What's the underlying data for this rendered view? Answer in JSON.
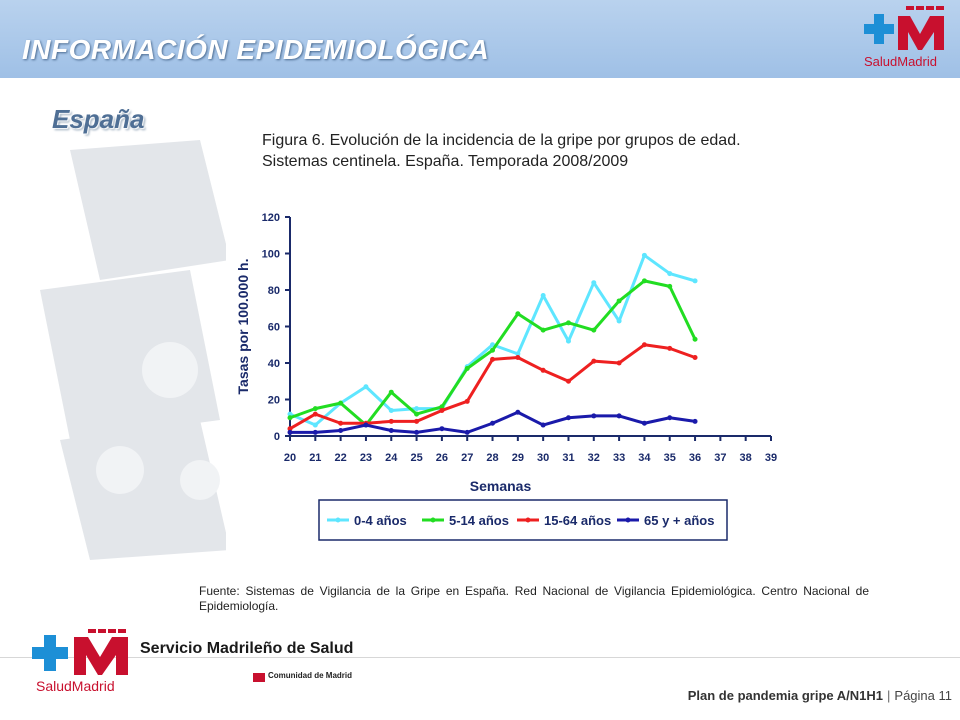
{
  "header": {
    "title": "INFORMACIÓN EPIDEMIOLÓGICA",
    "logo_text": "SaludMadrid"
  },
  "section": {
    "title": "España"
  },
  "figure": {
    "title_line1": "Figura 6. Evolución de la incidencia de la gripe por grupos de edad.",
    "title_line2": "Sistemas centinela. España. Temporada 2008/2009"
  },
  "source": "Fuente: Sistemas de Vigilancia de la Gripe en España. Red Nacional de Vigilancia Epidemiológica. Centro Nacional de Epidemiología.",
  "footer": {
    "org": "Servicio Madrileño de Salud",
    "logo_text": "SaludMadrid",
    "comunidad": "Comunidad de Madrid",
    "plan": "Plan de pandemia gripe A/N1H1",
    "page_label": "Página 11"
  },
  "chart_data": {
    "type": "line",
    "xlabel": "Semanas",
    "ylabel": "Tasas por 100.000 h.",
    "x": [
      20,
      21,
      22,
      23,
      24,
      25,
      26,
      27,
      28,
      29,
      30,
      31,
      32,
      33,
      34,
      35,
      36,
      37,
      38,
      39
    ],
    "ylim": [
      0,
      120
    ],
    "yticks": [
      0,
      20,
      40,
      60,
      80,
      100,
      120
    ],
    "legend_position": "bottom",
    "series": [
      {
        "name": "0-4 años",
        "color": "#5ee6ff",
        "values": [
          12,
          6,
          18,
          27,
          14,
          15,
          15,
          38,
          50,
          45,
          77,
          52,
          84,
          63,
          99,
          89,
          85,
          null,
          null,
          null
        ]
      },
      {
        "name": "5-14 años",
        "color": "#22dd22",
        "values": [
          10,
          15,
          18,
          6,
          24,
          12,
          16,
          37,
          47,
          67,
          58,
          62,
          58,
          74,
          85,
          82,
          53,
          null,
          null,
          null
        ]
      },
      {
        "name": "15-64 años",
        "color": "#ee2020",
        "values": [
          4,
          12,
          7,
          7,
          8,
          8,
          14,
          19,
          42,
          43,
          36,
          30,
          41,
          40,
          50,
          48,
          43,
          null,
          null,
          null
        ]
      },
      {
        "name": "65 y + años",
        "color": "#1a1aaa",
        "values": [
          2,
          2,
          3,
          6,
          3,
          2,
          4,
          2,
          7,
          13,
          6,
          10,
          11,
          11,
          7,
          10,
          8,
          null,
          null,
          null
        ]
      }
    ]
  }
}
